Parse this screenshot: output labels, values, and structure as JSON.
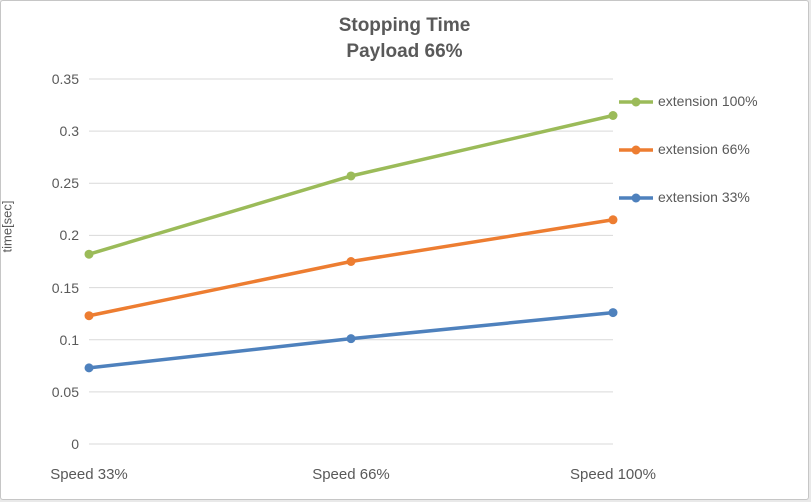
{
  "chart_data": {
    "type": "line",
    "title": "Stopping Time",
    "subtitle": "Payload 66%",
    "ylabel": "time[sec]",
    "xlabel": "",
    "categories": [
      "Speed 33%",
      "Speed 66%",
      "Speed 100%"
    ],
    "series": [
      {
        "name": "extension 100%",
        "color": "#9BBB59",
        "values": [
          0.182,
          0.257,
          0.315
        ]
      },
      {
        "name": "extension 66%",
        "color": "#ED7D31",
        "values": [
          0.123,
          0.175,
          0.215
        ]
      },
      {
        "name": "extension 33%",
        "color": "#4E81BD",
        "values": [
          0.073,
          0.101,
          0.126
        ]
      }
    ],
    "ylim": [
      0,
      0.35
    ],
    "yticks": [
      "0",
      "0.05",
      "0.1",
      "0.15",
      "0.2",
      "0.25",
      "0.3",
      "0.35"
    ],
    "grid": "horizontal",
    "gridline_color": "#d9d9d9",
    "legend_position": "right",
    "marker": "circle"
  }
}
